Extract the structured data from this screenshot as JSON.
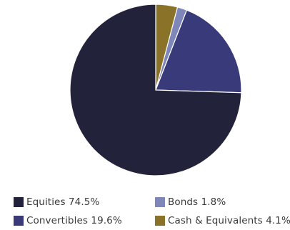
{
  "chart_data": {
    "type": "pie",
    "title": "",
    "slices": [
      {
        "label": "Cash & Equivalents 4.1%",
        "value": 4.1,
        "color": "#8a7228"
      },
      {
        "label": "Bonds 1.8%",
        "value": 1.8,
        "color": "#7f87b8"
      },
      {
        "label": "Convertibles 19.6%",
        "value": 19.6,
        "color": "#393a7a"
      },
      {
        "label": "Equities 74.5%",
        "value": 74.5,
        "color": "#22223a"
      }
    ],
    "start_angle_deg": 0,
    "direction": "clockwise",
    "legend_position": "bottom"
  },
  "legend": {
    "items": [
      {
        "label": "Equities 74.5%",
        "color": "#22223a"
      },
      {
        "label": "Bonds 1.8%",
        "color": "#7f87b8"
      },
      {
        "label": "Convertibles 19.6%",
        "color": "#393a7a"
      },
      {
        "label": "Cash & Equivalents 4.1%",
        "color": "#8a7228"
      }
    ]
  }
}
